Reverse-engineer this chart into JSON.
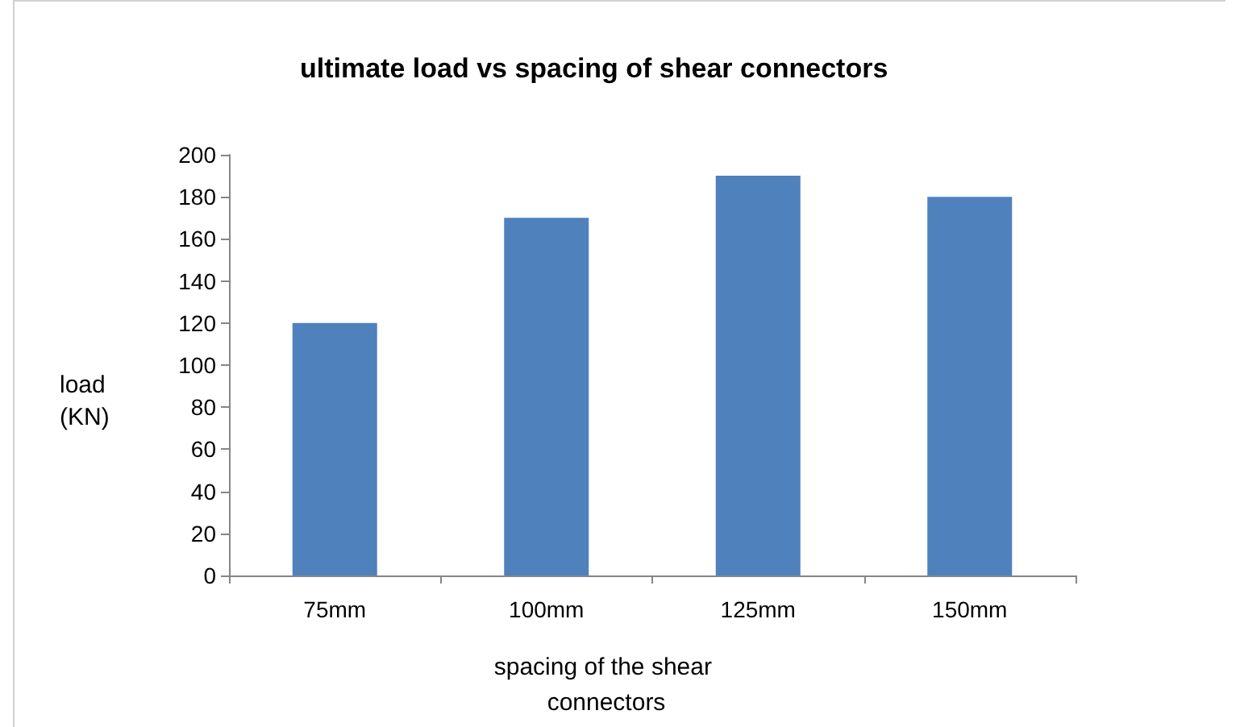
{
  "chart_data": {
    "type": "bar",
    "title": "ultimate load vs spacing of shear connectors",
    "xlabel": "spacing of the shear connectors",
    "ylabel": "load (KN)",
    "categories": [
      "75mm",
      "100mm",
      "125mm",
      "150mm"
    ],
    "values": [
      120,
      170,
      190,
      180
    ],
    "color": "#4f81bd",
    "ylim": [
      0,
      200
    ],
    "yticks": [
      0,
      20,
      40,
      60,
      80,
      100,
      120,
      140,
      160,
      180,
      200
    ],
    "grid": false
  }
}
